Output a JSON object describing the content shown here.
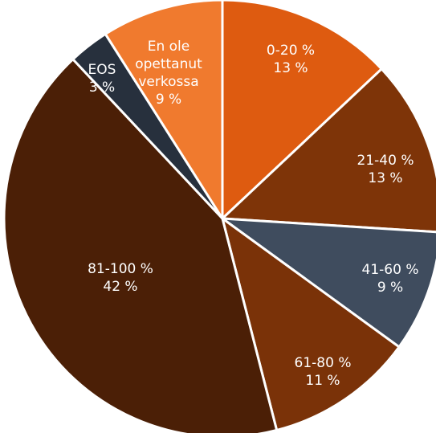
{
  "chart_data": {
    "type": "pie",
    "title": "",
    "legend": "none",
    "slices": [
      {
        "lines": [
          "0-20 %",
          "13 %"
        ],
        "value": 13,
        "color": "#de5b10"
      },
      {
        "lines": [
          "21-40 %",
          "13 %"
        ],
        "value": 13,
        "color": "#7e3408"
      },
      {
        "lines": [
          "41-60 %",
          "9 %"
        ],
        "value": 9,
        "color": "#3f4c5e"
      },
      {
        "lines": [
          "61-80 %",
          "11 %"
        ],
        "value": 11,
        "color": "#7a3208"
      },
      {
        "lines": [
          "81-100 %",
          "42 %"
        ],
        "value": 42,
        "color": "#4b1f06"
      },
      {
        "lines": [
          "EOS",
          "3 %"
        ],
        "value": 3,
        "color": "#27303d"
      },
      {
        "lines": [
          "En ole",
          "opettanut",
          "verkossa",
          "9 %"
        ],
        "value": 9,
        "color": "#f07a2e"
      }
    ]
  }
}
